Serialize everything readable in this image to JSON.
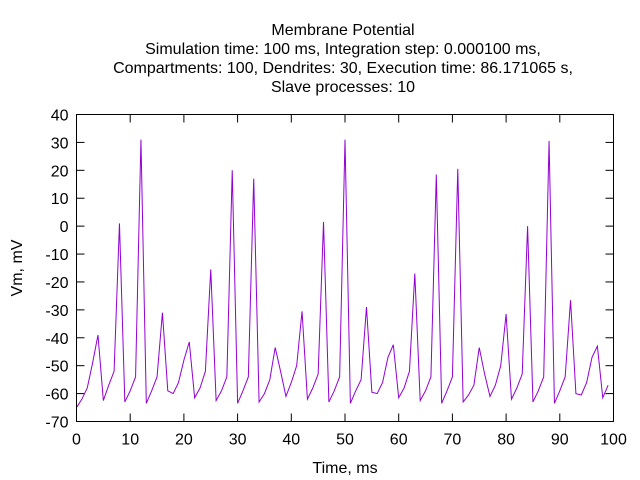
{
  "chart_data": {
    "type": "line",
    "title_lines": [
      "Membrane Potential",
      "Simulation time: 100 ms, Integration step: 0.000100 ms,",
      "Compartments: 100, Dendrites: 30, Execution time: 86.171065 s,",
      "Slave processes: 10"
    ],
    "xlabel": "Time, ms",
    "ylabel": "Vm, mV",
    "xlim": [
      0,
      100
    ],
    "ylim": [
      -70,
      40
    ],
    "xticks": [
      0,
      10,
      20,
      30,
      40,
      50,
      60,
      70,
      80,
      90,
      100
    ],
    "yticks": [
      -70,
      -60,
      -50,
      -40,
      -30,
      -20,
      -10,
      0,
      10,
      20,
      30,
      40
    ],
    "grid": false,
    "line_color": "#9400d3",
    "series": [
      {
        "x": [
          0,
          1,
          2,
          3,
          4,
          5,
          6,
          7,
          8,
          9,
          10,
          11,
          12,
          13,
          14,
          15,
          16,
          17,
          18,
          19,
          20,
          21,
          22,
          23,
          24,
          25,
          26,
          27,
          28,
          29,
          30,
          31,
          32,
          33,
          34,
          35,
          36,
          37,
          38,
          39,
          40,
          41,
          42,
          43,
          44,
          45,
          46,
          47,
          48,
          49,
          50,
          51,
          52,
          53,
          54,
          55,
          56,
          57,
          58,
          59,
          60,
          61,
          62,
          63,
          64,
          65,
          66,
          67,
          68,
          69,
          70,
          71,
          72,
          73,
          74,
          75,
          76,
          77,
          78,
          79,
          80,
          81,
          82,
          83,
          84,
          85,
          86,
          87,
          88,
          89,
          90,
          91,
          92,
          93,
          94,
          95,
          96,
          97,
          98,
          99
        ],
        "y": [
          -65,
          -62,
          -58,
          -49,
          -39,
          -62.5,
          -57,
          -52,
          1,
          -63,
          -59,
          -54,
          31,
          -63.5,
          -59,
          -54,
          -31,
          -59,
          -60,
          -56,
          -48,
          -41.5,
          -61.5,
          -58,
          -52,
          -15.5,
          -62.5,
          -59,
          -54,
          20,
          -63.5,
          -59,
          -54,
          17,
          -63,
          -60,
          -55,
          -43.5,
          -52,
          -61,
          -56,
          -50,
          -30.5,
          -62,
          -58,
          -53,
          1.5,
          -63,
          -59,
          -54,
          31,
          -63.5,
          -59,
          -55,
          -29,
          -59.5,
          -60,
          -56,
          -47,
          -42.5,
          -61.5,
          -58,
          -52,
          -17,
          -62.5,
          -59,
          -54,
          18.5,
          -63.5,
          -59,
          -54,
          20.5,
          -63,
          -60.5,
          -57,
          -43.5,
          -53,
          -61,
          -57,
          -50,
          -31.5,
          -62,
          -58,
          -53,
          0,
          -63,
          -59,
          -54,
          30.5,
          -63.5,
          -59,
          -54,
          -26.5,
          -60,
          -60.5,
          -56,
          -47,
          -43,
          -61.5,
          -57
        ]
      }
    ]
  }
}
